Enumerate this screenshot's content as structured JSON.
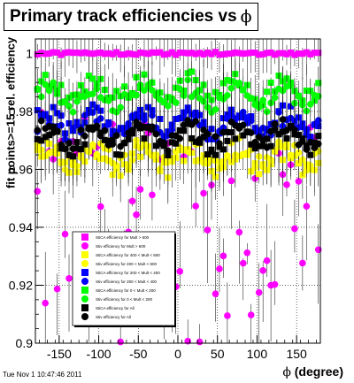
{
  "title_text": "Primary track efficiencies vs",
  "title_symbol": "ϕ",
  "footer_timestamp": "Tue Nov  1 10:47:46 2011",
  "chart_data": {
    "type": "scatter",
    "xlabel_symbol": "ϕ",
    "xlabel_text": " (degree)",
    "ylabel": "fit points>=15 rel. efficiency",
    "xlim": [
      -180,
      180
    ],
    "ylim": [
      0.9,
      1.005
    ],
    "xticks": [
      -150,
      -100,
      -50,
      0,
      50,
      100,
      150
    ],
    "yticks": [
      0.9,
      0.92,
      0.94,
      0.96,
      0.98,
      1
    ],
    "ytick_labels": [
      "0.9",
      "0.92",
      "0.94",
      "0.96",
      "0.98",
      "1"
    ],
    "grid": true,
    "legend_position": "lower-left",
    "series": [
      {
        "name": "StiCA efficiency  for Mult > 600",
        "color": "#ff00ff",
        "marker": "square",
        "level": 1.0
      },
      {
        "name": "Stiv efficiency  for Mult > 600",
        "color": "#ff00ff",
        "marker": "circle",
        "level": 0.95
      },
      {
        "name": "StiCA efficiency  for 400 < Mult < 600",
        "color": "#ffff00",
        "marker": "square",
        "level": 0.963
      },
      {
        "name": "Stiv efficiency  for 400 < Mult < 600",
        "color": "#ffff00",
        "marker": "circle",
        "level": 0.965
      },
      {
        "name": "StiCA efficiency  for 200 < Mult < 400",
        "color": "#0000ff",
        "marker": "square",
        "level": 0.977
      },
      {
        "name": "Stiv efficiency  for 200 < Mult < 400",
        "color": "#0000ff",
        "marker": "circle",
        "level": 0.975
      },
      {
        "name": "StiCA efficiency  for 0 < Mult < 200",
        "color": "#00ff00",
        "marker": "square",
        "level": 0.988
      },
      {
        "name": "Stiv efficiency  for 0 < Mult < 200",
        "color": "#00ff00",
        "marker": "circle",
        "level": 0.985
      },
      {
        "name": "StiCA efficiency  for All",
        "color": "#000000",
        "marker": "square",
        "level": 0.97
      },
      {
        "name": "Stiv efficiency  for All",
        "color": "#000000",
        "marker": "circle",
        "level": 0.972
      }
    ]
  }
}
